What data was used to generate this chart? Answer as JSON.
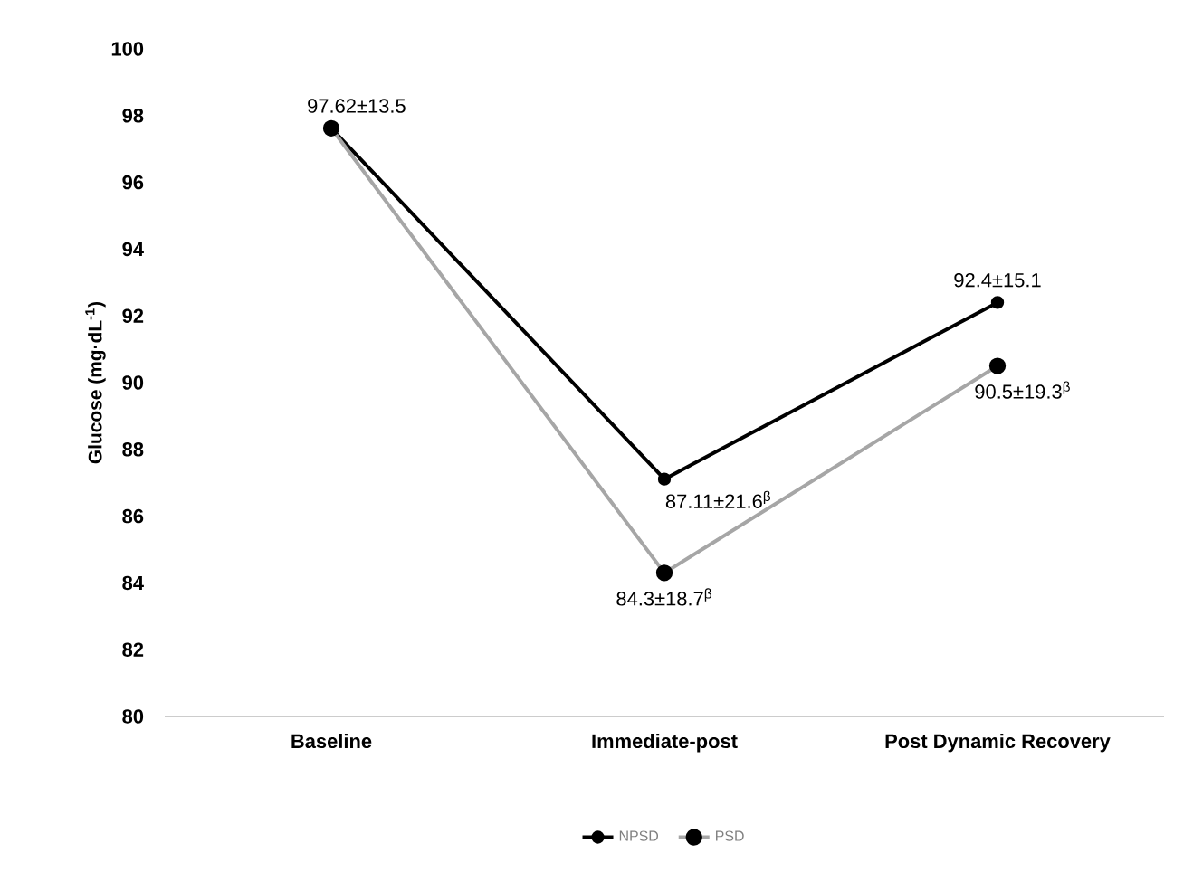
{
  "chart_data": {
    "type": "line",
    "ylabel": "Glucose (mg·dL$^{-1}$)",
    "categories": [
      "Baseline",
      "Immediate-post",
      "Post Dynamic Recovery"
    ],
    "series": [
      {
        "name": "NPSD",
        "color": "#000000",
        "values": [
          97.62,
          87.11,
          92.4
        ],
        "value_labels": [
          "97.62±13.5",
          "87.11±21.6$^{β}$",
          "92.4±15.1"
        ]
      },
      {
        "name": "PSD",
        "color": "#a6a6a6",
        "values": [
          97.62,
          84.3,
          90.5
        ],
        "value_labels": [
          null,
          "84.3±18.7$^{β}$",
          "90.5±19.3$^{β}$"
        ]
      }
    ],
    "ylim": [
      80,
      100
    ],
    "yticks": [
      80,
      82,
      84,
      86,
      88,
      90,
      92,
      94,
      96,
      98,
      100
    ],
    "grid": false,
    "legend": "bottom",
    "marker": "circle",
    "line_style": "solid"
  }
}
